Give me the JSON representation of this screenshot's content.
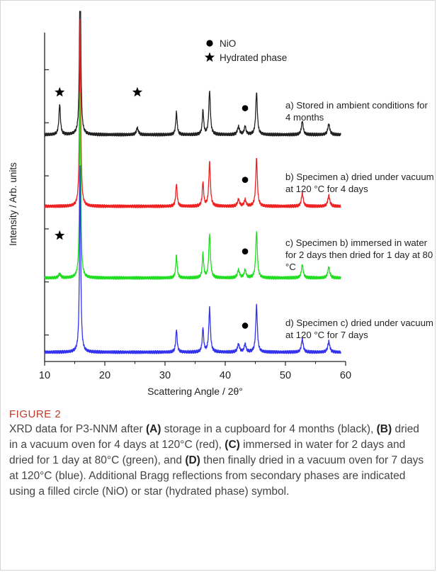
{
  "chart_data": {
    "type": "line",
    "title": "",
    "xlabel": "Scattering Angle / 2θ°",
    "ylabel": "Intensity / Arb. units",
    "xlim": [
      10,
      60
    ],
    "xticks": [
      "10",
      "20",
      "30",
      "40",
      "50",
      "60"
    ],
    "legend": {
      "placement": "top-center",
      "entries": [
        {
          "symbol": "circle",
          "label": "NiO"
        },
        {
          "symbol": "star",
          "label": "Hydrated phase"
        }
      ]
    },
    "series": [
      {
        "label_lines": [
          "a) Stored in ambient conditions for",
          "4 months"
        ],
        "color": "#222222",
        "baseline": 8.55,
        "peaks": [
          [
            12.5,
            1.15,
            0.15
          ],
          [
            15.9,
            7.0,
            0.12
          ],
          [
            25.4,
            0.25,
            0.2
          ],
          [
            31.9,
            0.85,
            0.14
          ],
          [
            36.3,
            0.9,
            0.14
          ],
          [
            37.4,
            1.65,
            0.16
          ],
          [
            42.2,
            0.3,
            0.2
          ],
          [
            43.3,
            0.3,
            0.18
          ],
          [
            45.2,
            1.6,
            0.16
          ],
          [
            52.8,
            0.5,
            0.18
          ],
          [
            57.2,
            0.4,
            0.2
          ]
        ],
        "circle_x": 43.3,
        "star_x": [
          12.5,
          25.4
        ]
      },
      {
        "label_lines": [
          "b) Specimen a) dried under vacuum",
          "at 120 °C for 4 days"
        ],
        "color": "#ee2222",
        "baseline": 5.85,
        "peaks": [
          [
            15.9,
            7.0,
            0.12
          ],
          [
            31.9,
            0.85,
            0.14
          ],
          [
            36.3,
            0.9,
            0.14
          ],
          [
            37.4,
            1.65,
            0.16
          ],
          [
            42.2,
            0.25,
            0.2
          ],
          [
            43.3,
            0.25,
            0.18
          ],
          [
            45.2,
            1.8,
            0.16
          ],
          [
            52.8,
            0.5,
            0.18
          ],
          [
            57.2,
            0.4,
            0.2
          ]
        ],
        "circle_x": 43.3,
        "star_x": []
      },
      {
        "label_lines": [
          "c) Specimen b) immersed in water",
          "for 2 days then dried for 1 day at 80",
          "°C"
        ],
        "color": "#22dd22",
        "baseline": 3.15,
        "peaks": [
          [
            12.5,
            0.15,
            0.2
          ],
          [
            15.9,
            7.0,
            0.12
          ],
          [
            31.9,
            0.85,
            0.14
          ],
          [
            36.3,
            0.9,
            0.14
          ],
          [
            37.4,
            1.65,
            0.16
          ],
          [
            42.2,
            0.3,
            0.2
          ],
          [
            43.3,
            0.3,
            0.18
          ],
          [
            45.2,
            1.75,
            0.16
          ],
          [
            52.8,
            0.5,
            0.18
          ],
          [
            57.2,
            0.4,
            0.2
          ]
        ],
        "circle_x": 43.3,
        "star_x": [
          12.5
        ]
      },
      {
        "label_lines": [
          "d) Specimen c) dried under vacuum",
          "at 120 °C for 7 days"
        ],
        "color": "#3333ee",
        "baseline": 0.35,
        "peaks": [
          [
            15.9,
            7.0,
            0.12
          ],
          [
            31.9,
            0.85,
            0.14
          ],
          [
            36.3,
            0.9,
            0.14
          ],
          [
            37.4,
            1.65,
            0.16
          ],
          [
            42.2,
            0.3,
            0.2
          ],
          [
            43.3,
            0.3,
            0.18
          ],
          [
            45.2,
            1.75,
            0.16
          ],
          [
            52.8,
            0.5,
            0.18
          ],
          [
            57.2,
            0.4,
            0.2
          ]
        ],
        "circle_x": 43.3,
        "star_x": []
      }
    ]
  },
  "caption": {
    "label": "FIGURE 2",
    "segments": [
      {
        "t": "XRD data for P3-NNM after ",
        "b": false
      },
      {
        "t": "(A)",
        "b": true
      },
      {
        "t": " storage in a cupboard for 4 months (black), ",
        "b": false
      },
      {
        "t": "(B)",
        "b": true
      },
      {
        "t": " dried in a vacuum oven for 4 days at 120°C (red), ",
        "b": false
      },
      {
        "t": "(C)",
        "b": true
      },
      {
        "t": " immersed in water for 2 days and dried for 1 day at 80°C (green), and ",
        "b": false
      },
      {
        "t": "(D)",
        "b": true
      },
      {
        "t": " then finally dried in a vacuum oven for 7 days at 120°C (blue). Additional Bragg reflections from secondary phases are indicated using a filled circle (NiO) or star (hydrated phase) symbol.",
        "b": false
      }
    ]
  }
}
